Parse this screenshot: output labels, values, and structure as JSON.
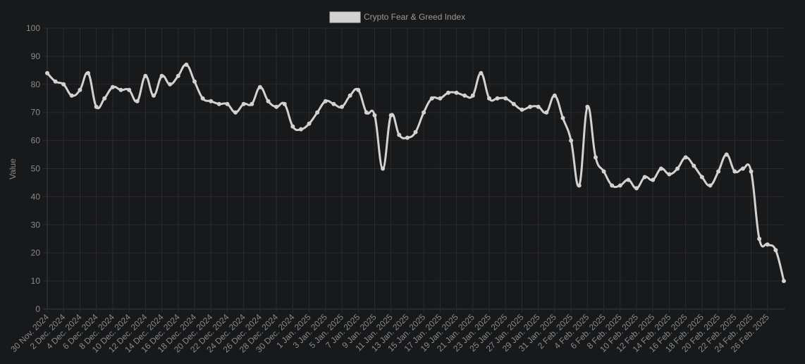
{
  "colors": {
    "background": "#18191b",
    "line": "#d2d2d2",
    "grid": "#2a2b2e",
    "text": "#8a8a8a"
  },
  "chart_data": {
    "type": "line",
    "title": "",
    "xlabel": "",
    "ylabel": "Value",
    "ylim": [
      0,
      100
    ],
    "yticks": [
      0,
      10,
      20,
      30,
      40,
      50,
      60,
      70,
      80,
      90,
      100
    ],
    "grid": true,
    "legend_position": "top-center",
    "x_tick_labels": [
      "30 Nov. 2024",
      "2 Dec. 2024",
      "4 Dec. 2024",
      "6 Dec. 2024",
      "8 Dec. 2024",
      "10 Dec. 2024",
      "12 Dec. 2024",
      "14 Dec. 2024",
      "16 Dec. 2024",
      "18 Dec. 2024",
      "20 Dec. 2024",
      "22 Dec. 2024",
      "24 Dec. 2024",
      "26 Dec. 2024",
      "28 Dec. 2024",
      "30 Dec. 2024",
      "1 Jan. 2025",
      "3 Jan. 2025",
      "5 Jan. 2025",
      "7 Jan. 2025",
      "9 Jan. 2025",
      "11 Jan. 2025",
      "13 Jan. 2025",
      "15 Jan. 2025",
      "17 Jan. 2025",
      "19 Jan. 2025",
      "21 Jan. 2025",
      "23 Jan. 2025",
      "25 Jan. 2025",
      "27 Jan. 2025",
      "29 Jan. 2025",
      "31 Jan. 2025",
      "2 Feb. 2025",
      "4 Feb. 2025",
      "6 Feb. 2025",
      "8 Feb. 2025",
      "10 Feb. 2025",
      "12 Feb. 2025",
      "14 Feb. 2025",
      "16 Feb. 2025",
      "18 Feb. 2025",
      "20 Feb. 2025",
      "22 Feb. 2025",
      "24 Feb. 2025",
      "26 Feb. 2025"
    ],
    "series": [
      {
        "name": "Crypto Fear & Greed Index",
        "values": [
          84,
          81,
          80,
          76,
          78,
          84,
          72,
          75,
          79,
          78,
          78,
          74,
          83,
          76,
          83,
          80,
          83,
          87,
          81,
          75,
          74,
          73,
          73,
          70,
          73,
          73,
          79,
          74,
          72,
          73,
          65,
          64,
          66,
          70,
          74,
          73,
          72,
          76,
          78,
          70,
          69,
          50,
          69,
          62,
          61,
          63,
          70,
          75,
          75,
          77,
          77,
          76,
          76,
          84,
          75,
          75,
          75,
          73,
          71,
          72,
          72,
          70,
          76,
          68,
          60,
          44,
          72,
          54,
          49,
          44,
          44,
          46,
          43,
          47,
          46,
          50,
          48,
          50,
          54,
          51,
          47,
          44,
          49,
          55,
          49,
          50,
          49,
          25,
          23,
          21,
          10
        ]
      }
    ]
  }
}
